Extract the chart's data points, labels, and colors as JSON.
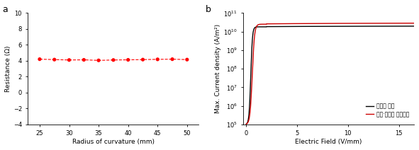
{
  "panel_a": {
    "x": [
      25,
      27.5,
      30,
      32.5,
      35,
      37.5,
      40,
      42.5,
      45,
      47.5,
      50
    ],
    "y": [
      4.2,
      4.15,
      4.1,
      4.12,
      4.05,
      4.1,
      4.12,
      4.15,
      4.18,
      4.2,
      4.15
    ],
    "xlabel": "Radius of curvature (mm)",
    "ylabel": "Resistance (Ω)",
    "ylim": [
      -4,
      10
    ],
    "xlim": [
      23,
      52
    ],
    "xticks": [
      25,
      30,
      35,
      40,
      45,
      50
    ],
    "yticks": [
      -4,
      -2,
      0,
      2,
      4,
      6,
      8,
      10
    ],
    "line_color": "red",
    "marker_color": "red",
    "label": "a"
  },
  "panel_b": {
    "xlabel": "Electric Field (V/mm)",
    "ylabel": "Max. Current density (A/m²)",
    "xlim": [
      -0.3,
      16.5
    ],
    "ylim_log": [
      5,
      11
    ],
    "xticks": [
      0,
      5,
      10,
      15
    ],
    "legend": [
      "신축성 금속",
      "신축·전도성 나노소재"
    ],
    "black_color": "#000000",
    "red_color": "#cc0000",
    "label": "b",
    "black_params": {
      "onset": 0.45,
      "steepness": 12.0,
      "sat": 18000000000.0,
      "floor": 100000.0
    },
    "red_params": {
      "onset": 0.6,
      "steepness": 9.0,
      "sat": 25000000000.0,
      "floor": 100000.0
    }
  }
}
